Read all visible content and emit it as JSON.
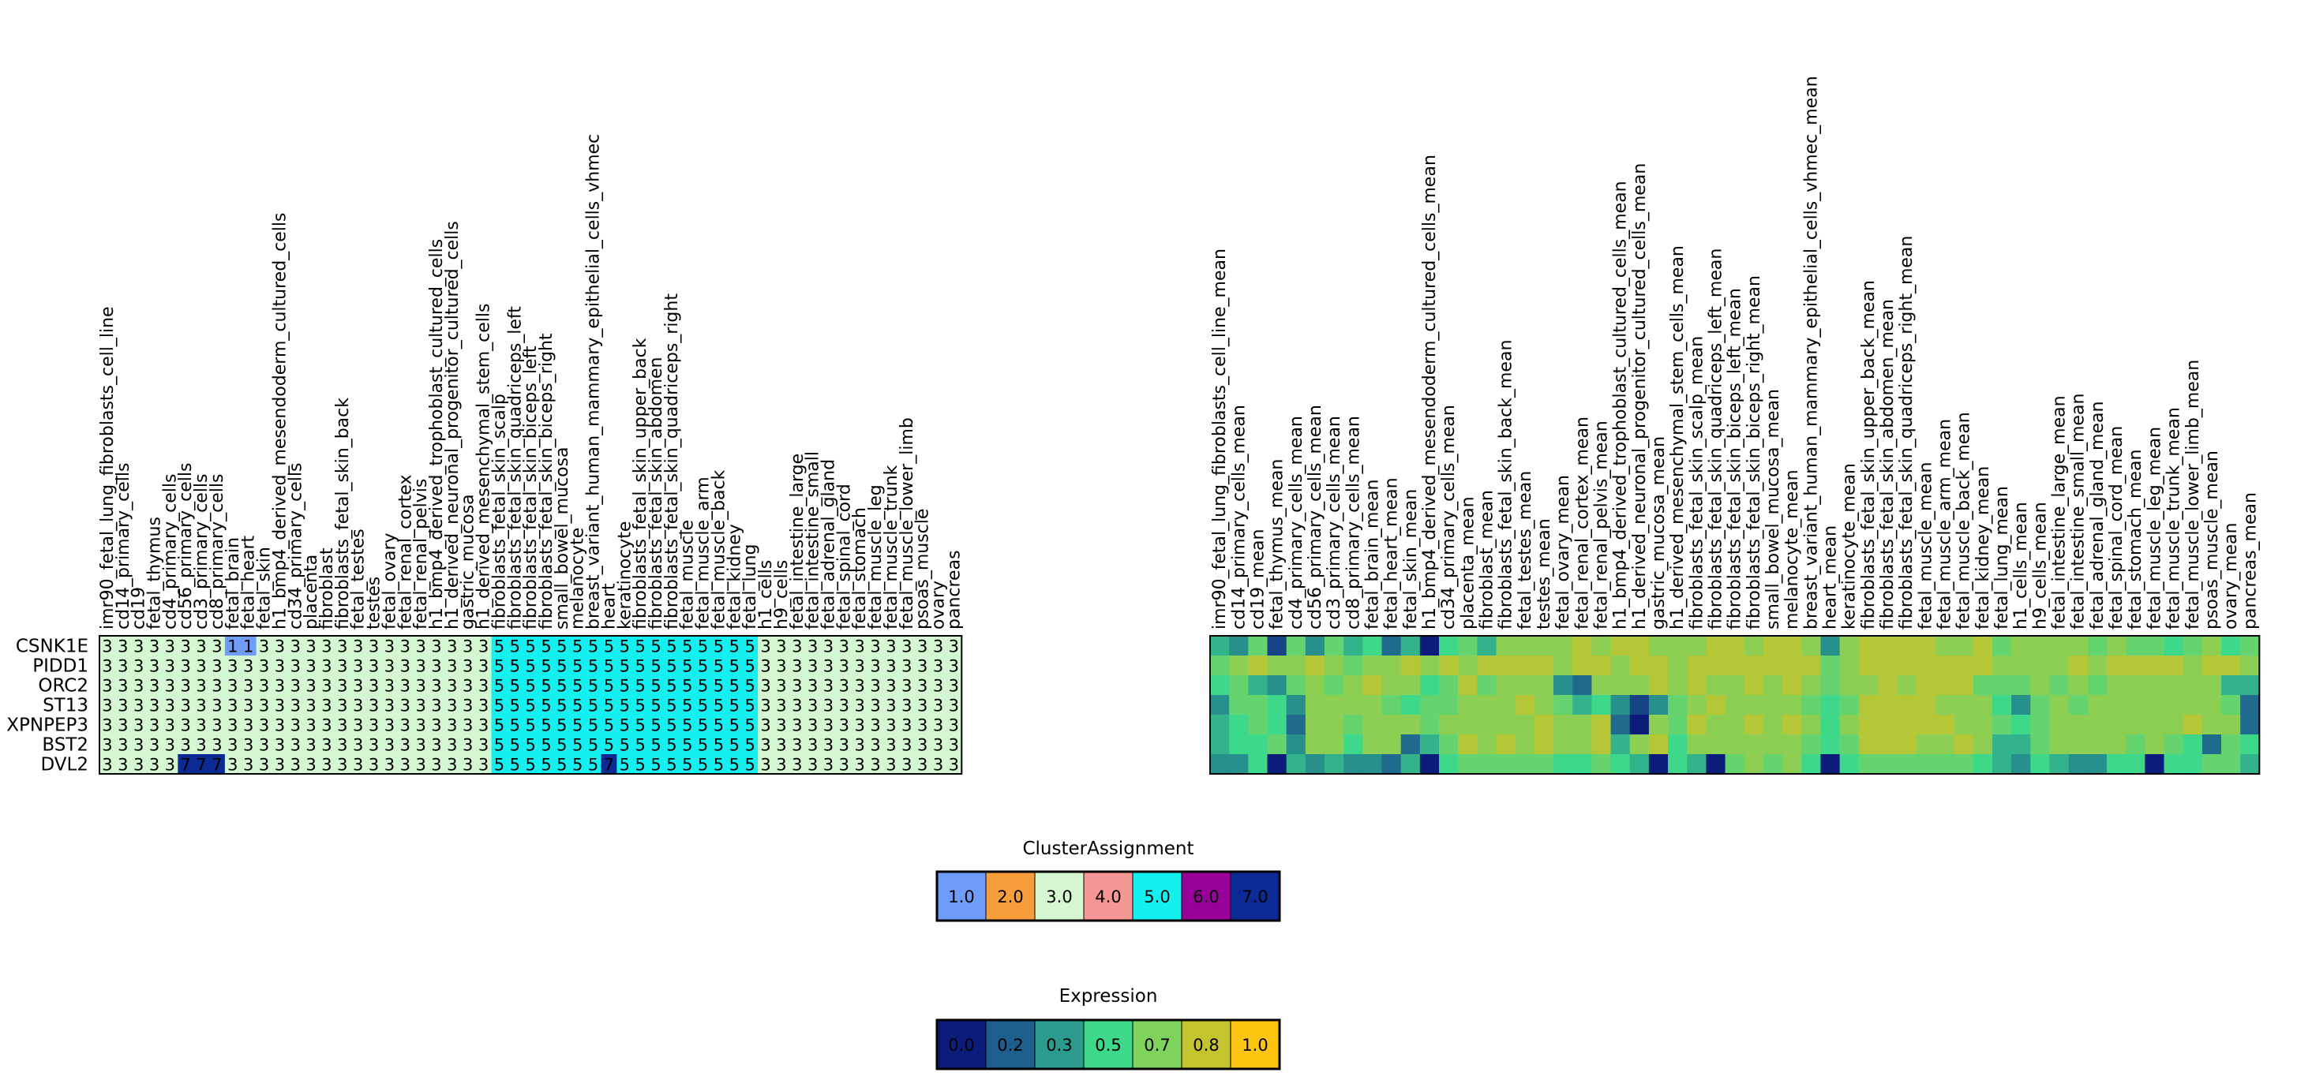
{
  "samples": [
    "imr90_fetal_lung_fibroblasts_cell_line",
    "cd14_primary_cells",
    "cd19",
    "fetal_thymus",
    "cd4_primary_cells",
    "cd56_primary_cells",
    "cd3_primary_cells",
    "cd8_primary_cells",
    "fetal_brain",
    "fetal_heart",
    "fetal_skin",
    "h1_bmp4_derived_mesendoderm_cultured_cells",
    "cd34_primary_cells",
    "placenta",
    "fibroblast",
    "fibroblasts_fetal_skin_back",
    "fetal_testes",
    "testes",
    "fetal_ovary",
    "fetal_renal_cortex",
    "fetal_renal_pelvis",
    "h1_bmp4_derived_trophoblast_cultured_cells",
    "h1_derived_neuronal_progenitor_cultured_cells",
    "gastric_mucosa",
    "h1_derived_mesenchymal_stem_cells",
    "fibroblasts_fetal_skin_scalp",
    "fibroblasts_fetal_skin_quadriceps_left",
    "fibroblasts_fetal_skin_biceps_left",
    "fibroblasts_fetal_skin_biceps_right",
    "small_bowel_mucosa",
    "melanocyte",
    "breast_variant_human_mammary_epithelial_cells_vhmec",
    "heart",
    "keratinocyte",
    "fibroblasts_fetal_skin_upper_back",
    "fibroblasts_fetal_skin_abdomen",
    "fibroblasts_fetal_skin_quadriceps_right",
    "fetal_muscle",
    "fetal_muscle_arm",
    "fetal_muscle_back",
    "fetal_kidney",
    "fetal_lung",
    "h1_cells",
    "h9_cells",
    "fetal_intestine_large",
    "fetal_intestine_small",
    "fetal_adrenal_gland",
    "fetal_spinal_cord",
    "fetal_stomach",
    "fetal_muscle_leg",
    "fetal_muscle_trunk",
    "fetal_muscle_lower_limb",
    "psoas_muscle",
    "ovary",
    "pancreas"
  ],
  "genes": [
    "CSNK1E",
    "PIDD1",
    "ORC2",
    "ST13",
    "XPNPEP3",
    "BST2",
    "DVL2"
  ],
  "chart_data": [
    {
      "type": "heatmap",
      "name": "cluster-assignment",
      "rows": [
        "CSNK1E",
        "PIDD1",
        "ORC2",
        "ST13",
        "XPNPEP3",
        "BST2",
        "DVL2"
      ],
      "values": [
        [
          3,
          3,
          3,
          3,
          3,
          3,
          3,
          3,
          1,
          1,
          3,
          3,
          3,
          3,
          3,
          3,
          3,
          3,
          3,
          3,
          3,
          3,
          3,
          3,
          3,
          5,
          5,
          5,
          5,
          5,
          5,
          5,
          5,
          5,
          5,
          5,
          5,
          5,
          5,
          5,
          5,
          5,
          3,
          3,
          3,
          3,
          3,
          3,
          3,
          3,
          3,
          3,
          3,
          3,
          3
        ],
        [
          3,
          3,
          3,
          3,
          3,
          3,
          3,
          3,
          3,
          3,
          3,
          3,
          3,
          3,
          3,
          3,
          3,
          3,
          3,
          3,
          3,
          3,
          3,
          3,
          3,
          5,
          5,
          5,
          5,
          5,
          5,
          5,
          5,
          5,
          5,
          5,
          5,
          5,
          5,
          5,
          5,
          5,
          3,
          3,
          3,
          3,
          3,
          3,
          3,
          3,
          3,
          3,
          3,
          3,
          3
        ],
        [
          3,
          3,
          3,
          3,
          3,
          3,
          3,
          3,
          3,
          3,
          3,
          3,
          3,
          3,
          3,
          3,
          3,
          3,
          3,
          3,
          3,
          3,
          3,
          3,
          3,
          5,
          5,
          5,
          5,
          5,
          5,
          5,
          5,
          5,
          5,
          5,
          5,
          5,
          5,
          5,
          5,
          5,
          3,
          3,
          3,
          3,
          3,
          3,
          3,
          3,
          3,
          3,
          3,
          3,
          3
        ],
        [
          3,
          3,
          3,
          3,
          3,
          3,
          3,
          3,
          3,
          3,
          3,
          3,
          3,
          3,
          3,
          3,
          3,
          3,
          3,
          3,
          3,
          3,
          3,
          3,
          3,
          5,
          5,
          5,
          5,
          5,
          5,
          5,
          5,
          5,
          5,
          5,
          5,
          5,
          5,
          5,
          5,
          5,
          3,
          3,
          3,
          3,
          3,
          3,
          3,
          3,
          3,
          3,
          3,
          3,
          3
        ],
        [
          3,
          3,
          3,
          3,
          3,
          3,
          3,
          3,
          3,
          3,
          3,
          3,
          3,
          3,
          3,
          3,
          3,
          3,
          3,
          3,
          3,
          3,
          3,
          3,
          3,
          5,
          5,
          5,
          5,
          5,
          5,
          5,
          5,
          5,
          5,
          5,
          5,
          5,
          5,
          5,
          5,
          5,
          3,
          3,
          3,
          3,
          3,
          3,
          3,
          3,
          3,
          3,
          3,
          3,
          3
        ],
        [
          3,
          3,
          3,
          3,
          3,
          3,
          3,
          3,
          3,
          3,
          3,
          3,
          3,
          3,
          3,
          3,
          3,
          3,
          3,
          3,
          3,
          3,
          3,
          3,
          3,
          5,
          5,
          5,
          5,
          5,
          5,
          5,
          5,
          5,
          5,
          5,
          5,
          5,
          5,
          5,
          5,
          5,
          3,
          3,
          3,
          3,
          3,
          3,
          3,
          3,
          3,
          3,
          3,
          3,
          3
        ],
        [
          3,
          3,
          3,
          3,
          3,
          7,
          7,
          7,
          3,
          3,
          3,
          3,
          3,
          3,
          3,
          3,
          3,
          3,
          3,
          3,
          3,
          3,
          3,
          3,
          3,
          5,
          5,
          5,
          5,
          5,
          5,
          5,
          7,
          5,
          5,
          5,
          5,
          5,
          5,
          5,
          5,
          5,
          3,
          3,
          3,
          3,
          3,
          3,
          3,
          3,
          3,
          3,
          3,
          3,
          3
        ]
      ]
    },
    {
      "type": "heatmap",
      "name": "expression",
      "rows": [
        "CSNK1E",
        "PIDD1",
        "ORC2",
        "ST13",
        "XPNPEP3",
        "BST2",
        "DVL2"
      ],
      "column_suffix": "_mean",
      "values": [
        [
          0.4,
          0.3,
          0.6,
          0.1,
          0.6,
          0.3,
          0.6,
          0.4,
          0.5,
          0.2,
          0.4,
          0.0,
          0.5,
          0.6,
          0.4,
          0.7,
          0.7,
          0.7,
          0.7,
          0.8,
          0.7,
          0.8,
          0.8,
          0.7,
          0.7,
          0.7,
          0.8,
          0.8,
          0.7,
          0.8,
          0.8,
          0.7,
          0.3,
          0.7,
          0.8,
          0.8,
          0.8,
          0.8,
          0.7,
          0.7,
          0.8,
          0.6,
          0.7,
          0.7,
          0.7,
          0.7,
          0.6,
          0.7,
          0.6,
          0.6,
          0.5,
          0.6,
          0.7,
          0.5,
          0.6
        ],
        [
          0.6,
          0.7,
          0.8,
          0.7,
          0.7,
          0.8,
          0.7,
          0.6,
          0.7,
          0.7,
          0.8,
          0.7,
          0.8,
          0.7,
          0.8,
          0.8,
          0.8,
          0.8,
          0.7,
          0.8,
          0.8,
          0.7,
          0.8,
          0.8,
          0.7,
          0.8,
          0.8,
          0.8,
          0.8,
          0.8,
          0.8,
          0.8,
          0.6,
          0.7,
          0.8,
          0.8,
          0.8,
          0.8,
          0.8,
          0.8,
          0.8,
          0.7,
          0.7,
          0.7,
          0.7,
          0.8,
          0.7,
          0.8,
          0.8,
          0.8,
          0.8,
          0.7,
          0.8,
          0.8,
          0.7
        ],
        [
          0.5,
          0.6,
          0.4,
          0.3,
          0.6,
          0.7,
          0.6,
          0.7,
          0.8,
          0.7,
          0.7,
          0.5,
          0.6,
          0.8,
          0.6,
          0.7,
          0.7,
          0.7,
          0.3,
          0.2,
          0.7,
          0.7,
          0.7,
          0.8,
          0.7,
          0.8,
          0.7,
          0.7,
          0.8,
          0.7,
          0.8,
          0.7,
          0.6,
          0.7,
          0.7,
          0.8,
          0.7,
          0.8,
          0.8,
          0.8,
          0.6,
          0.6,
          0.6,
          0.7,
          0.6,
          0.7,
          0.6,
          0.7,
          0.7,
          0.7,
          0.7,
          0.7,
          0.7,
          0.4,
          0.4
        ],
        [
          0.3,
          0.6,
          0.6,
          0.5,
          0.3,
          0.7,
          0.7,
          0.7,
          0.7,
          0.6,
          0.5,
          0.6,
          0.6,
          0.7,
          0.7,
          0.7,
          0.8,
          0.7,
          0.6,
          0.4,
          0.5,
          0.3,
          0.1,
          0.3,
          0.6,
          0.7,
          0.8,
          0.7,
          0.7,
          0.7,
          0.7,
          0.6,
          0.5,
          0.6,
          0.8,
          0.8,
          0.8,
          0.8,
          0.7,
          0.7,
          0.7,
          0.5,
          0.3,
          0.6,
          0.7,
          0.6,
          0.7,
          0.7,
          0.7,
          0.7,
          0.7,
          0.7,
          0.7,
          0.6,
          0.2
        ],
        [
          0.4,
          0.5,
          0.6,
          0.5,
          0.2,
          0.7,
          0.7,
          0.6,
          0.7,
          0.7,
          0.7,
          0.6,
          0.7,
          0.7,
          0.7,
          0.7,
          0.7,
          0.8,
          0.7,
          0.7,
          0.8,
          0.2,
          0.0,
          0.7,
          0.6,
          0.8,
          0.7,
          0.7,
          0.8,
          0.7,
          0.8,
          0.7,
          0.5,
          0.7,
          0.8,
          0.8,
          0.8,
          0.8,
          0.8,
          0.7,
          0.7,
          0.6,
          0.5,
          0.6,
          0.7,
          0.7,
          0.7,
          0.7,
          0.7,
          0.7,
          0.7,
          0.8,
          0.7,
          0.7,
          0.2
        ],
        [
          0.4,
          0.5,
          0.5,
          0.6,
          0.3,
          0.7,
          0.7,
          0.5,
          0.7,
          0.7,
          0.2,
          0.4,
          0.6,
          0.8,
          0.7,
          0.8,
          0.7,
          0.8,
          0.7,
          0.7,
          0.8,
          0.4,
          0.7,
          0.8,
          0.5,
          0.7,
          0.7,
          0.7,
          0.7,
          0.7,
          0.7,
          0.6,
          0.5,
          0.6,
          0.8,
          0.8,
          0.8,
          0.7,
          0.7,
          0.8,
          0.7,
          0.4,
          0.4,
          0.6,
          0.7,
          0.7,
          0.7,
          0.7,
          0.6,
          0.7,
          0.6,
          0.5,
          0.2,
          0.6,
          0.5
        ],
        [
          0.3,
          0.3,
          0.5,
          0.0,
          0.4,
          0.3,
          0.4,
          0.3,
          0.3,
          0.2,
          0.4,
          0.0,
          0.5,
          0.6,
          0.6,
          0.6,
          0.6,
          0.6,
          0.5,
          0.5,
          0.6,
          0.5,
          0.4,
          0.0,
          0.5,
          0.4,
          0.0,
          0.6,
          0.7,
          0.6,
          0.7,
          0.5,
          0.0,
          0.5,
          0.6,
          0.6,
          0.6,
          0.6,
          0.6,
          0.6,
          0.5,
          0.4,
          0.3,
          0.5,
          0.4,
          0.3,
          0.3,
          0.5,
          0.5,
          0.0,
          0.5,
          0.5,
          0.6,
          0.6,
          0.4
        ]
      ]
    }
  ],
  "legend_cluster": {
    "title": "ClusterAssignment",
    "items": [
      {
        "label": "1.0",
        "color": "#6f9cf6",
        "text_color": "#000000"
      },
      {
        "label": "2.0",
        "color": "#f59e3b",
        "text_color": "#000000"
      },
      {
        "label": "3.0",
        "color": "#d4f6d0",
        "text_color": "#000000"
      },
      {
        "label": "4.0",
        "color": "#f59694",
        "text_color": "#000000"
      },
      {
        "label": "5.0",
        "color": "#14f0f0",
        "text_color": "#000000"
      },
      {
        "label": "6.0",
        "color": "#990099",
        "text_color": "#ffffff"
      },
      {
        "label": "7.0",
        "color": "#0c2a94",
        "text_color": "#ffffff"
      }
    ]
  },
  "legend_expression": {
    "title": "Expression",
    "items": [
      {
        "label": "0.0",
        "color": "#0b1c7a",
        "text_color": "#ffffff"
      },
      {
        "label": "0.2",
        "color": "#1d5e8d",
        "text_color": "#ffffff"
      },
      {
        "label": "0.3",
        "color": "#2a9b8c",
        "text_color": "#000000"
      },
      {
        "label": "0.5",
        "color": "#3dd88a",
        "text_color": "#000000"
      },
      {
        "label": "0.7",
        "color": "#7fd25c",
        "text_color": "#000000"
      },
      {
        "label": "0.8",
        "color": "#c3c42e",
        "text_color": "#000000"
      },
      {
        "label": "1.0",
        "color": "#fcc511",
        "text_color": "#000000"
      }
    ]
  },
  "colors": {
    "cluster": {
      "1": "#6f9cf6",
      "2": "#f59e3b",
      "3": "#d4f6d0",
      "4": "#f59694",
      "5": "#14f0f0",
      "6": "#990099",
      "7": "#0c2a94"
    },
    "expression_stops": [
      "#0b1c7a",
      "#1d5e8d",
      "#2a9b8c",
      "#3dd88a",
      "#7fd25c",
      "#c3c42e",
      "#fcc511"
    ]
  }
}
